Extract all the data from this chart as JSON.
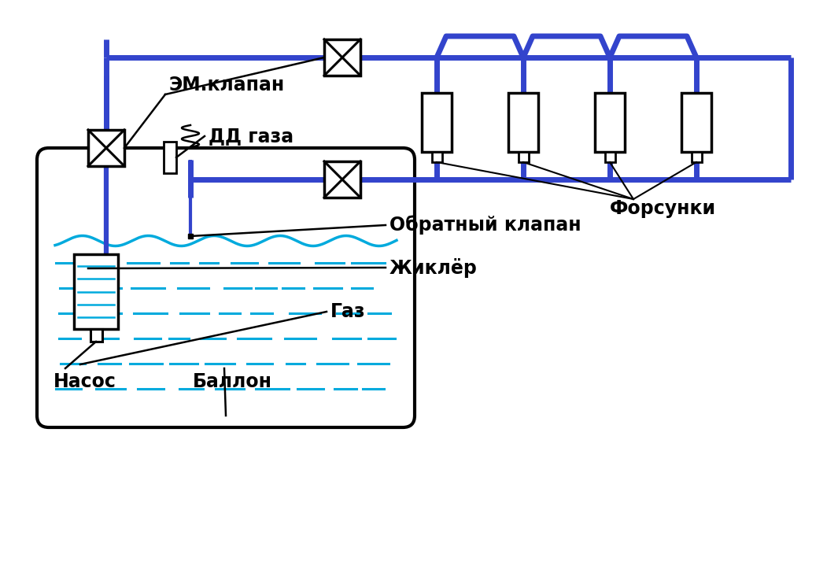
{
  "bg_color": "#ffffff",
  "lc": "#3344cc",
  "blk": "#000000",
  "cyan": "#00aadd",
  "lw": 5.0,
  "figsize": [
    10.65,
    7.28
  ],
  "dpi": 100,
  "labels": {
    "em_valve": "ЭМ.клапан",
    "dd_gas": "ДД газа",
    "injectors": "Форсунки",
    "check_valve": "Обратный клапан",
    "zhikler": "Жиклёр",
    "gas": "Газ",
    "pump": "Насос",
    "balloon": "Баллон"
  }
}
